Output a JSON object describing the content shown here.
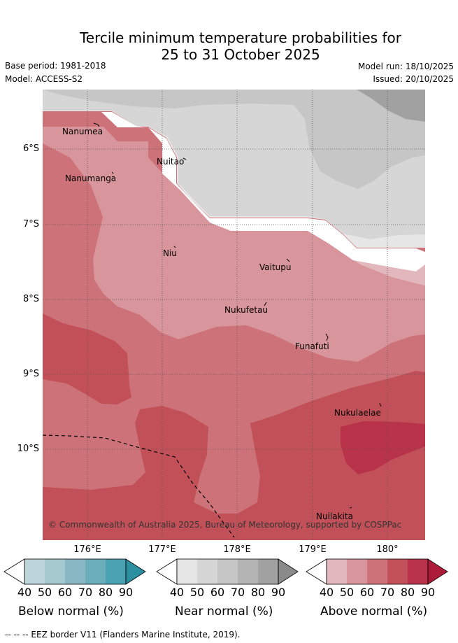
{
  "title": {
    "line1": "Tercile minimum temperature probabilities for",
    "line2": "25 to 31 October 2025"
  },
  "meta": {
    "base_period": "Base period: 1981-2018",
    "model": "Model: ACCESS-S2",
    "model_run": "Model run: 18/10/2025",
    "issued": "Issued: 20/10/2025"
  },
  "map": {
    "lat_labels": [
      "6°S",
      "7°S",
      "8°S",
      "9°S",
      "10°S"
    ],
    "lon_labels": [
      "176°E",
      "177°E",
      "178°E",
      "179°E",
      "180°"
    ],
    "places": [
      "Nanumea",
      "Nuitao",
      "Nanumanga",
      "Niu",
      "Vaitupu",
      "Nukufetau",
      "Funafuti",
      "Nukulaelae",
      "Nuilakita"
    ],
    "copyright": "© Commonwealth of Australia 2025, Bureau of Meteorology, supported by COSPPac"
  },
  "colorbars": [
    {
      "title": "Below normal (%)",
      "ticks": [
        "40",
        "50",
        "60",
        "70",
        "80",
        "90"
      ],
      "colors": [
        "#bfd5dc",
        "#a6c9cf",
        "#89b8c4",
        "#6aaebc",
        "#4aa1b1",
        "#2c8fa0"
      ]
    },
    {
      "title": "Near normal (%)",
      "ticks": [
        "40",
        "50",
        "60",
        "70",
        "80",
        "90"
      ],
      "colors": [
        "#e6e6e6",
        "#d6d6d6",
        "#c6c6c6",
        "#b4b4b4",
        "#a1a1a1",
        "#8a8a8a"
      ]
    },
    {
      "title": "Above normal (%)",
      "ticks": [
        "40",
        "50",
        "60",
        "70",
        "80",
        "90"
      ],
      "colors": [
        "#e2b8be",
        "#d8959b",
        "#cd7278",
        "#c25058",
        "#b8324a",
        "#ac1c38"
      ]
    }
  ],
  "footer": "--  --  -- EEZ border V11 (Flanders Marine Institute, 2019)."
}
